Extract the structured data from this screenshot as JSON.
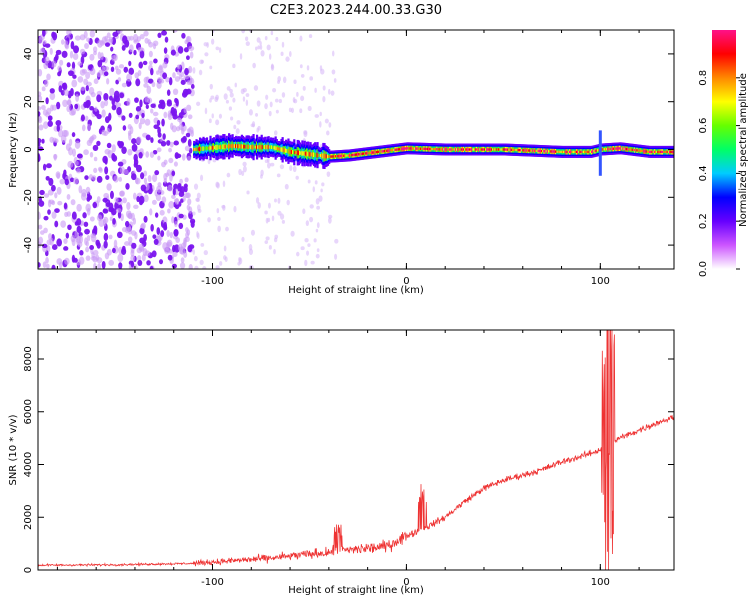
{
  "title": "C2E3.2023.244.00.33.G30",
  "chart_data": [
    {
      "type": "heatmap",
      "xlabel": "Height of straight line (km)",
      "ylabel": "Frequency (Hz)",
      "xlim": [
        -190,
        138
      ],
      "ylim": [
        -50,
        50
      ],
      "xticks": [
        -100,
        0,
        100
      ],
      "yticks": [
        -40,
        -20,
        0,
        20,
        40
      ],
      "grid": false,
      "colorbar": {
        "label": "Normalized spectral amplitude",
        "range": [
          0.0,
          1.0
        ],
        "ticks": [
          0.0,
          0.2,
          0.4,
          0.6,
          0.8
        ],
        "colormap": [
          "#ffffff",
          "#cc55ff",
          "#6600ff",
          "#0000ff",
          "#00ccff",
          "#00ff66",
          "#66ff00",
          "#ffff00",
          "#ff8800",
          "#ff0000",
          "#ff1188"
        ]
      },
      "noise_region_x": [
        -190,
        -110
      ],
      "sparse_region_x": [
        -110,
        -35
      ],
      "signal_track": [
        {
          "x": -110,
          "f": 0.0
        },
        {
          "x": -90,
          "f": 1.5
        },
        {
          "x": -80,
          "f": 1.0
        },
        {
          "x": -70,
          "f": 1.0
        },
        {
          "x": -60,
          "f": -1.0
        },
        {
          "x": -50,
          "f": -2.0
        },
        {
          "x": -40,
          "f": -3.0
        },
        {
          "x": -30,
          "f": -2.5
        },
        {
          "x": -20,
          "f": -1.5
        },
        {
          "x": -10,
          "f": -0.5
        },
        {
          "x": 0,
          "f": 0.5
        },
        {
          "x": 20,
          "f": 0.0
        },
        {
          "x": 50,
          "f": 0.0
        },
        {
          "x": 80,
          "f": -1.0
        },
        {
          "x": 95,
          "f": -1.0
        },
        {
          "x": 100,
          "f": 0.0
        },
        {
          "x": 110,
          "f": 0.5
        },
        {
          "x": 125,
          "f": -1.0
        },
        {
          "x": 138,
          "f": -1.0
        }
      ],
      "signal_bandwidth_hz": 5,
      "spikes": [
        {
          "x": 100,
          "f_min": -11,
          "f_max": 8
        }
      ]
    },
    {
      "type": "line",
      "xlabel": "Height of straight line (km)",
      "ylabel": "SNR (10 * v/v)",
      "xlim": [
        -190,
        138
      ],
      "ylim": [
        0,
        9100
      ],
      "xticks": [
        -100,
        0,
        100
      ],
      "yticks": [
        0,
        2000,
        4000,
        6000,
        8000
      ],
      "grid": false,
      "color": "#ee3333",
      "trend": [
        {
          "x": -190,
          "y": 180
        },
        {
          "x": -150,
          "y": 200
        },
        {
          "x": -110,
          "y": 250
        },
        {
          "x": -90,
          "y": 350
        },
        {
          "x": -70,
          "y": 450
        },
        {
          "x": -50,
          "y": 600
        },
        {
          "x": -30,
          "y": 750
        },
        {
          "x": -10,
          "y": 900
        },
        {
          "x": 0,
          "y": 1300
        },
        {
          "x": 10,
          "y": 1600
        },
        {
          "x": 20,
          "y": 2000
        },
        {
          "x": 30,
          "y": 2600
        },
        {
          "x": 40,
          "y": 3100
        },
        {
          "x": 50,
          "y": 3400
        },
        {
          "x": 60,
          "y": 3600
        },
        {
          "x": 70,
          "y": 3800
        },
        {
          "x": 80,
          "y": 4100
        },
        {
          "x": 90,
          "y": 4300
        },
        {
          "x": 98,
          "y": 4500
        },
        {
          "x": 110,
          "y": 5000
        },
        {
          "x": 120,
          "y": 5300
        },
        {
          "x": 130,
          "y": 5600
        },
        {
          "x": 138,
          "y": 5800
        }
      ],
      "features": [
        {
          "x": -35,
          "y_max": 1800
        },
        {
          "x": 8,
          "y_max": 3500
        },
        {
          "x": 103,
          "y_max": 8500,
          "y_min": 800
        },
        {
          "x": 105,
          "y_max": 9100,
          "y_min": 400
        }
      ]
    }
  ]
}
